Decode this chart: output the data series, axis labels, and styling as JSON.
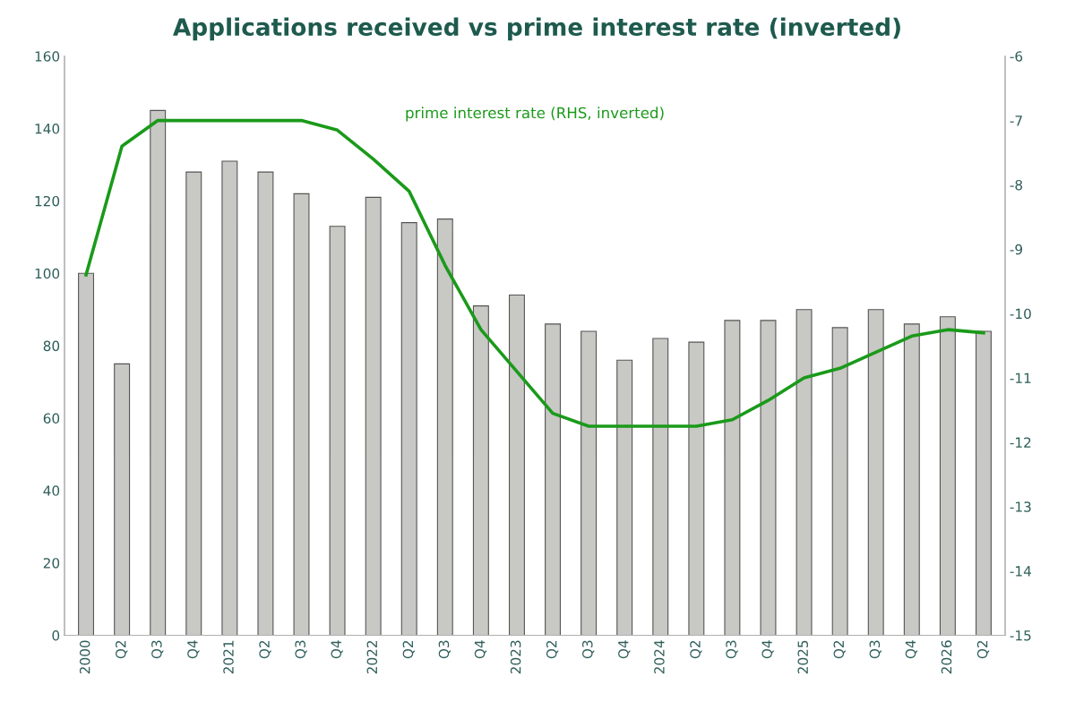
{
  "chart_data": {
    "type": "bar",
    "title": "Applications received vs prime interest rate (inverted)",
    "categories": [
      "2000",
      "Q2",
      "Q3",
      "Q4",
      "2021",
      "Q2",
      "Q3",
      "Q4",
      "2022",
      "Q2",
      "Q3",
      "Q4",
      "2023",
      "Q2",
      "Q3",
      "Q4",
      "2024",
      "Q2",
      "Q3",
      "Q4",
      "2025",
      "Q2",
      "Q3",
      "Q4",
      "2026",
      "Q2"
    ],
    "series": [
      {
        "color": "#c8c8c4",
        "values": [
          100,
          75,
          145,
          128,
          131,
          128,
          122,
          113,
          121,
          114,
          115,
          91,
          94,
          86,
          84,
          76,
          82,
          81,
          87,
          87,
          90,
          85,
          90,
          86,
          88,
          84
        ]
      },
      {
        "type": "line",
        "name": "prime interest rate (RHS, inverted)",
        "axis": "y2",
        "color": "#1a9a1a",
        "values": [
          -9.4,
          -7.4,
          -7.0,
          -7.0,
          -7.0,
          -7.0,
          -7.0,
          -7.15,
          -7.6,
          -8.1,
          -9.25,
          -10.25,
          -10.9,
          -11.55,
          -11.75,
          -11.75,
          -11.75,
          -11.75,
          -11.65,
          -11.35,
          -11.0,
          -10.85,
          -10.6,
          -10.35,
          -10.25,
          -10.3
        ]
      }
    ],
    "ylim": [
      0,
      160
    ],
    "yticks": [
      0,
      20,
      40,
      60,
      80,
      100,
      120,
      140,
      160
    ],
    "y2lim": [
      -15,
      -6
    ],
    "y2ticks": [
      -15,
      -14,
      -13,
      -12,
      -11,
      -10,
      -9,
      -8,
      -7,
      -6
    ],
    "grid": false,
    "legend": false,
    "marker": "none",
    "line_style": "solid"
  }
}
